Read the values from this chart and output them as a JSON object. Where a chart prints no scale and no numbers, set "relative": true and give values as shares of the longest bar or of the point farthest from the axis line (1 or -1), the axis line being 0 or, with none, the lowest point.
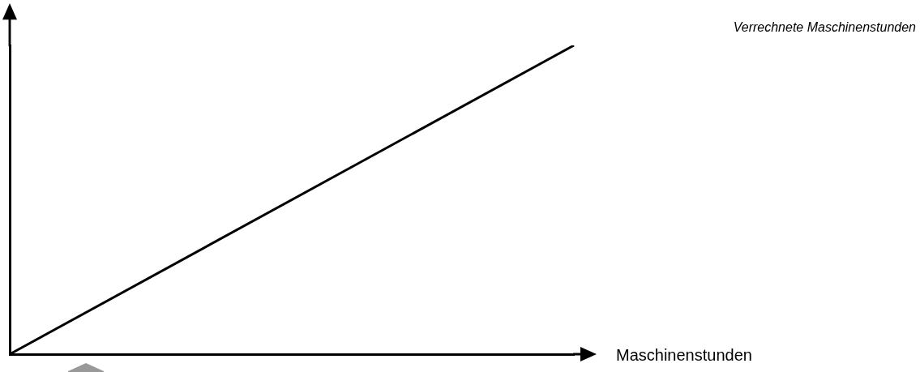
{
  "chart_data": {
    "type": "line",
    "relative": true,
    "xlabel": "Maschinenstunden",
    "categories": [
      null,
      null
    ],
    "series": [
      {
        "name": "Verrechnete Maschinenstunden",
        "color": "#000000",
        "values": [
          0,
          1
        ]
      }
    ],
    "legend": false,
    "marker": "none",
    "line_style": "solid"
  }
}
